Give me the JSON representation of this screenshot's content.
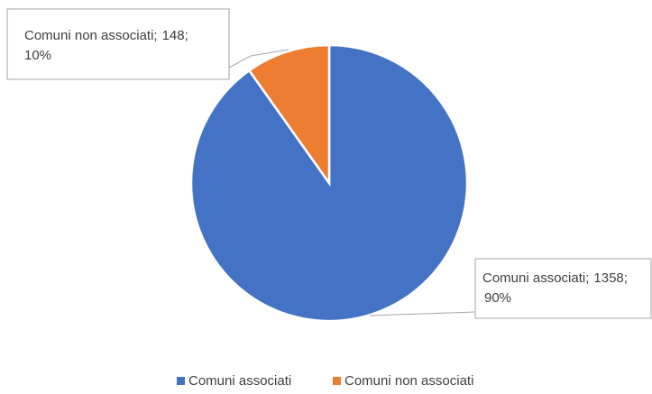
{
  "chart_data": {
    "type": "pie",
    "categories": [
      "Comuni associati",
      "Comuni non associati"
    ],
    "values": [
      1358,
      148
    ],
    "percent_labels": [
      "90%",
      "10%"
    ],
    "label_separator": ";",
    "colors": [
      "#4472c4",
      "#ed7d31"
    ],
    "legend": "bottom"
  }
}
